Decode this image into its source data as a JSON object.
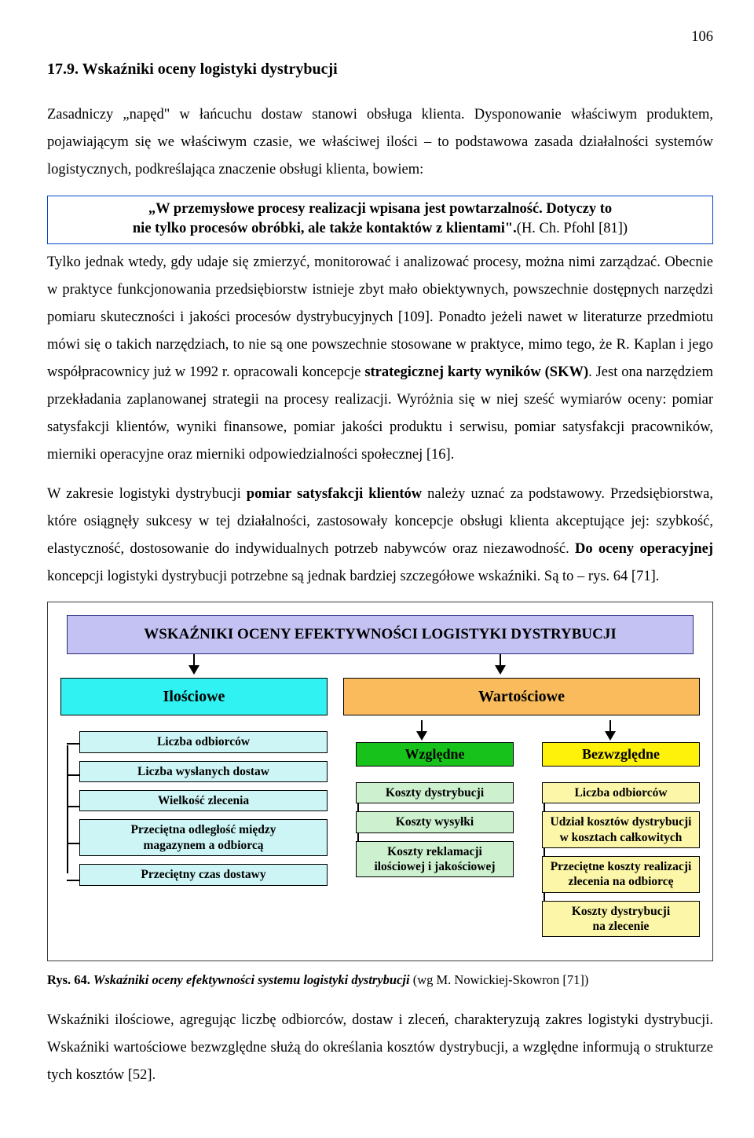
{
  "page_number": "106",
  "heading": "17.9. Wskaźniki oceny logistyki dystrybucji",
  "intro_sentence": "Zasadniczy „napęd\" w łańcuchu dostaw stanowi obsługa klienta. Dysponowanie właściwym produktem, pojawiającym się we właściwym czasie, we właściwej ilości – to podstawowa zasada działalności systemów logistycznych, podkreślająca znaczenie obsługi klienta, bowiem:",
  "quote_line1": "„W przemysłowe procesy realizacji wpisana jest powtarzalność. Dotyczy to",
  "quote_line2": "nie tylko procesów obróbki, ale także kontaktów z  klientami\".",
  "quote_ref": "(H. Ch. Pfohl [81])",
  "para2a": "Tylko jednak wtedy, gdy udaje się zmierzyć, monitorować i analizować procesy, można nimi zarządzać. Obecnie w praktyce funkcjonowania przedsiębiorstw istnieje zbyt mało obiektywnych, powszechnie dostępnych narzędzi pomiaru skuteczności i jakości procesów dystrybucyjnych [109]. Ponadto jeżeli nawet w literaturze przedmiotu mówi się o takich narzędziach, to nie są one powszechnie stosowane w praktyce, mimo tego, że R. Kaplan i jego współpracownicy już w 1992 r. opracowali koncepcje ",
  "para2b_bold": "strategicznej karty wyników (SKW)",
  "para2c": ". Jest ona narzędziem przekładania zaplanowanej strategii na procesy realizacji. Wyróżnia się w niej sześć wymiarów oceny: pomiar satysfakcji klientów, wyniki finansowe, pomiar jakości produktu i serwisu, pomiar satysfakcji pracowników, mierniki operacyjne oraz mierniki odpowiedzialności społecznej [16].",
  "para3a": "W zakresie logistyki dystrybucji ",
  "para3b_bold": "pomiar satysfakcji klientów",
  "para3c": " należy uznać za podstawowy. Przedsiębiorstwa, które osiągnęły sukcesy w tej działalności, zastosowały koncepcje obsługi klienta akceptujące jej: szybkość, elastyczność, dostosowanie do indywidualnych potrzeb nabywców oraz niezawodność. ",
  "para3d_bold": "Do oceny operacyjnej",
  "para3e": " koncepcji logistyki dystrybucji potrzebne są jednak bardziej szczegółowe wskaźniki. Są to – rys. 64 [71].",
  "diagram": {
    "title": "WSKAŹNIKI OCENY EFEKTYWNOŚCI  LOGISTYKI  DYSTRYBUCJI",
    "colors": {
      "title_bg": "#c4c2f2",
      "ilosciowe_bg": "#30f2f2",
      "wartosciowe_bg": "#f9bb5b",
      "wzgledne_bg": "#17c21a",
      "bezwzgledne_bg": "#fff20a",
      "left_leaf_bg": "#cdf5f5",
      "mid_leaf_bg": "#cdf0cf",
      "right_leaf_bg": "#fcf6a8"
    },
    "ilosciowe": {
      "label": "Ilościowe",
      "items": [
        "Liczba odbiorców",
        "Liczba wysłanych dostaw",
        "Wielkość zlecenia",
        "Przeciętna odległość między\nmagazynem a odbiorcą",
        "Przeciętny czas dostawy"
      ]
    },
    "wartosciowe": {
      "label": "Wartościowe",
      "wzgledne": {
        "label": "Względne",
        "items": [
          "Koszty dystrybucji",
          "Koszty wysyłki",
          "Koszty reklamacji\nilościowej i jakościowej"
        ]
      },
      "bezwzgledne": {
        "label": "Bezwzględne",
        "items": [
          "Liczba odbiorców",
          "Udział kosztów dystrybucji\nw kosztach całkowitych",
          "Przeciętne  koszty realizacji\nzlecenia na odbiorcę",
          "Koszty dystrybucji\nna zlecenie"
        ]
      }
    }
  },
  "fig_caption_lead": "Rys. 64.",
  "fig_caption_title": " Wskaźniki oceny efektywności systemu logistyki dystrybucji ",
  "fig_caption_tail": "(wg M. Nowickiej-Skowron [71])",
  "para4": "Wskaźniki  ilościowe, agregując liczbę odbiorców, dostaw i zleceń, charakteryzują zakres logistyki dystrybucji. Wskaźniki wartościowe bezwzględne służą do określania kosztów dystrybucji, a względne informują o strukturze tych kosztów [52]."
}
